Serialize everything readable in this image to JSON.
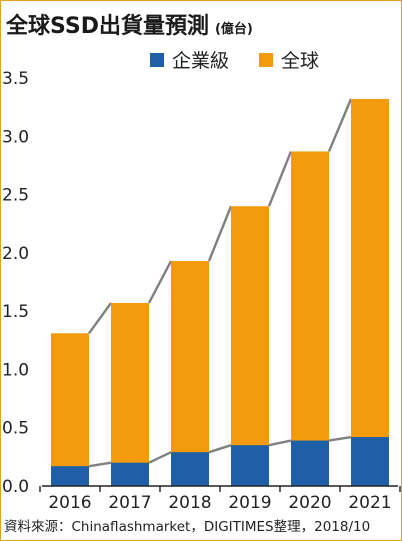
{
  "title": "全球SSD出貨量預測",
  "unit": "(億台)",
  "legend": {
    "enterprise": "企業級",
    "global": "全球"
  },
  "source": "資料來源：Chinaflashmarket，DIGITIMES整理，2018/10",
  "colors": {
    "enterprise": "#1f5fa8",
    "global": "#f39b0d",
    "connector": "#808080",
    "axis": "#222222",
    "frame": "#e3a01c"
  },
  "chart_data": {
    "type": "bar",
    "stacked": false,
    "categories": [
      "2016",
      "2017",
      "2018",
      "2019",
      "2020",
      "2021"
    ],
    "series": [
      {
        "name": "全球",
        "values": [
          1.31,
          1.57,
          1.93,
          2.4,
          2.87,
          3.32
        ]
      },
      {
        "name": "企業級",
        "values": [
          0.17,
          0.2,
          0.29,
          0.35,
          0.39,
          0.42
        ]
      }
    ],
    "yticks": [
      "0.0",
      "0.5",
      "1.0",
      "1.5",
      "2.0",
      "2.5",
      "3.0",
      "3.5"
    ],
    "ylim": [
      0,
      3.5
    ],
    "grid": false,
    "legend_position": "top"
  }
}
